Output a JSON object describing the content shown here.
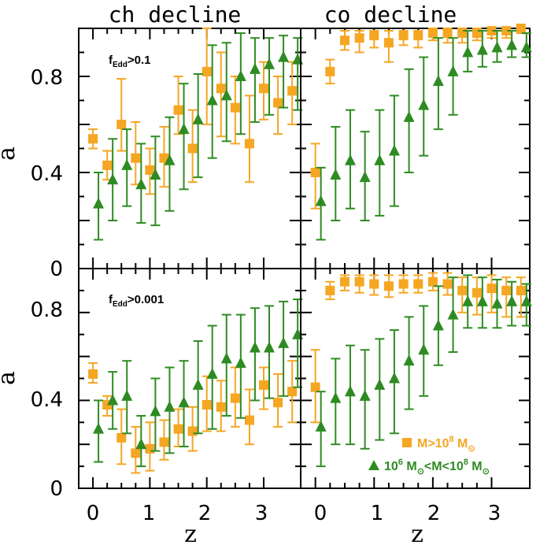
{
  "figure": {
    "panel_titles": [
      "ch decline",
      "co decline"
    ],
    "row_annotations": [
      {
        "main": "f",
        "sub": "Edd",
        "rest": ">0.1"
      },
      {
        "main": "f",
        "sub": "Edd",
        "rest": ">0.001"
      }
    ],
    "x_label": "z",
    "y_label": "a",
    "x_tick_labels": [
      "0",
      "1",
      "2",
      "3"
    ],
    "y_tick_labels": [
      "0",
      "0.4",
      "0.8"
    ],
    "legend": [
      {
        "name": "orange",
        "text": "M>10",
        "sup": "8",
        "rest": " M",
        "sub": "⊙"
      },
      {
        "name": "green",
        "text": "10",
        "sup": "6",
        "mid": " M",
        "sub1": "⊙",
        "mid2": "<M<10",
        "sup2": "8",
        "rest": " M",
        "sub2": "⊙"
      }
    ],
    "colors": {
      "orange": "#f5a623",
      "green": "#2e8b22"
    }
  },
  "chart_data": [
    {
      "type": "scatter",
      "panel": "top-left",
      "title": "ch decline",
      "annotation": "fEdd>0.1",
      "xlabel": "",
      "ylabel": "a",
      "xlim": [
        -0.25,
        3.65
      ],
      "ylim": [
        0,
        1.0
      ],
      "series": [
        {
          "name": "M>10^8 Msun",
          "color": "orange",
          "marker": "square",
          "x": [
            0.0,
            0.25,
            0.5,
            0.75,
            1.0,
            1.25,
            1.5,
            1.75,
            2.0,
            2.25,
            2.5,
            2.75,
            3.0,
            3.25,
            3.5
          ],
          "y": [
            0.54,
            0.43,
            0.6,
            0.46,
            0.41,
            0.46,
            0.66,
            0.5,
            0.82,
            0.75,
            0.67,
            0.52,
            0.75,
            0.69,
            0.74
          ],
          "lo": [
            0.5,
            0.37,
            0.49,
            0.35,
            0.31,
            0.34,
            0.56,
            0.36,
            0.6,
            0.55,
            0.52,
            0.36,
            0.62,
            0.56,
            0.6
          ],
          "hi": [
            0.58,
            0.49,
            0.79,
            0.61,
            0.5,
            0.59,
            0.8,
            0.66,
            1.0,
            0.9,
            0.8,
            0.72,
            0.86,
            0.8,
            0.86
          ]
        },
        {
          "name": "10^6 Msun<M<10^8 Msun",
          "color": "green",
          "marker": "triangle",
          "x": [
            0.0,
            0.25,
            0.5,
            0.75,
            1.0,
            1.25,
            1.5,
            1.75,
            2.0,
            2.25,
            2.5,
            2.75,
            3.0,
            3.25,
            3.5
          ],
          "y": [
            0.27,
            0.37,
            0.43,
            0.35,
            0.39,
            0.45,
            0.58,
            0.62,
            0.7,
            0.72,
            0.8,
            0.83,
            0.85,
            0.88,
            0.87
          ],
          "lo": [
            0.12,
            0.2,
            0.26,
            0.19,
            0.18,
            0.24,
            0.33,
            0.38,
            0.46,
            0.53,
            0.56,
            0.61,
            0.64,
            0.67,
            0.66
          ],
          "hi": [
            0.4,
            0.54,
            0.58,
            0.52,
            0.55,
            0.63,
            0.77,
            0.81,
            0.93,
            0.94,
            0.98,
            0.96,
            0.96,
            0.97,
            0.96
          ]
        }
      ]
    },
    {
      "type": "scatter",
      "panel": "top-right",
      "title": "co decline",
      "annotation": "",
      "xlabel": "",
      "ylabel": "",
      "xlim": [
        -0.25,
        3.65
      ],
      "ylim": [
        0,
        1.0
      ],
      "series": [
        {
          "name": "M>10^8 Msun",
          "color": "orange",
          "marker": "square",
          "x": [
            0.0,
            0.25,
            0.5,
            0.75,
            1.0,
            1.25,
            1.5,
            1.75,
            2.0,
            2.25,
            2.5,
            2.75,
            3.0,
            3.25,
            3.5
          ],
          "y": [
            0.4,
            0.82,
            0.95,
            0.96,
            0.97,
            0.94,
            0.97,
            0.97,
            0.98,
            0.98,
            0.98,
            0.98,
            0.99,
            0.99,
            1.0
          ],
          "lo": [
            0.25,
            0.77,
            0.91,
            0.9,
            0.92,
            0.86,
            0.93,
            0.92,
            0.95,
            0.94,
            0.94,
            0.95,
            0.96,
            0.96,
            0.98
          ],
          "hi": [
            0.52,
            0.87,
            0.99,
            0.99,
            0.99,
            0.99,
            0.99,
            0.99,
            1.0,
            1.0,
            1.0,
            1.0,
            1.0,
            1.0,
            1.0
          ]
        },
        {
          "name": "10^6 Msun<M<10^8 Msun",
          "color": "green",
          "marker": "triangle",
          "x": [
            0.0,
            0.25,
            0.5,
            0.75,
            1.0,
            1.25,
            1.5,
            1.75,
            2.0,
            2.25,
            2.5,
            2.75,
            3.0,
            3.25,
            3.5
          ],
          "y": [
            0.28,
            0.39,
            0.45,
            0.38,
            0.45,
            0.49,
            0.63,
            0.68,
            0.78,
            0.82,
            0.9,
            0.91,
            0.92,
            0.93,
            0.92
          ],
          "lo": [
            0.12,
            0.2,
            0.25,
            0.2,
            0.22,
            0.26,
            0.4,
            0.47,
            0.58,
            0.64,
            0.82,
            0.84,
            0.86,
            0.88,
            0.88
          ],
          "hi": [
            0.42,
            0.59,
            0.66,
            0.57,
            0.66,
            0.72,
            0.83,
            0.88,
            0.96,
            0.96,
            0.99,
            0.99,
            0.99,
            0.99,
            0.98
          ]
        }
      ]
    },
    {
      "type": "scatter",
      "panel": "bottom-left",
      "title": "",
      "annotation": "fEdd>0.001",
      "xlabel": "z",
      "ylabel": "a",
      "xlim": [
        -0.25,
        3.65
      ],
      "ylim": [
        0,
        1.0
      ],
      "series": [
        {
          "name": "M>10^8 Msun",
          "color": "orange",
          "marker": "square",
          "x": [
            0.0,
            0.25,
            0.5,
            0.75,
            1.0,
            1.25,
            1.5,
            1.75,
            2.0,
            2.25,
            2.5,
            2.75,
            3.0,
            3.25,
            3.5
          ],
          "y": [
            0.52,
            0.38,
            0.23,
            0.16,
            0.18,
            0.21,
            0.27,
            0.26,
            0.38,
            0.37,
            0.41,
            0.31,
            0.47,
            0.39,
            0.44
          ],
          "lo": [
            0.48,
            0.33,
            0.11,
            0.07,
            0.08,
            0.13,
            0.19,
            0.17,
            0.26,
            0.26,
            0.28,
            0.2,
            0.36,
            0.28,
            0.3
          ],
          "hi": [
            0.57,
            0.42,
            0.36,
            0.28,
            0.3,
            0.31,
            0.36,
            0.37,
            0.51,
            0.49,
            0.55,
            0.45,
            0.55,
            0.52,
            0.58
          ]
        },
        {
          "name": "10^6 Msun<M<10^8 Msun",
          "color": "green",
          "marker": "triangle",
          "x": [
            0.0,
            0.25,
            0.5,
            0.75,
            1.0,
            1.25,
            1.5,
            1.75,
            2.0,
            2.25,
            2.5,
            2.75,
            3.0,
            3.25,
            3.5
          ],
          "y": [
            0.27,
            0.4,
            0.42,
            0.2,
            0.35,
            0.37,
            0.39,
            0.47,
            0.52,
            0.59,
            0.57,
            0.64,
            0.64,
            0.66,
            0.7
          ],
          "lo": [
            0.12,
            0.27,
            0.25,
            0.1,
            0.17,
            0.16,
            0.19,
            0.25,
            0.27,
            0.33,
            0.32,
            0.4,
            0.41,
            0.42,
            0.46
          ],
          "hi": [
            0.4,
            0.53,
            0.58,
            0.33,
            0.5,
            0.55,
            0.58,
            0.67,
            0.74,
            0.79,
            0.79,
            0.82,
            0.83,
            0.85,
            0.86
          ]
        }
      ]
    },
    {
      "type": "scatter",
      "panel": "bottom-right",
      "title": "",
      "annotation": "",
      "xlabel": "z",
      "ylabel": "",
      "xlim": [
        -0.25,
        3.65
      ],
      "ylim": [
        0,
        1.0
      ],
      "series": [
        {
          "name": "M>10^8 Msun",
          "color": "orange",
          "marker": "square",
          "x": [
            0.0,
            0.25,
            0.5,
            0.75,
            1.0,
            1.25,
            1.5,
            1.75,
            2.0,
            2.25,
            2.5,
            2.75,
            3.0,
            3.25,
            3.5
          ],
          "y": [
            0.46,
            0.9,
            0.94,
            0.94,
            0.93,
            0.92,
            0.93,
            0.93,
            0.94,
            0.93,
            0.9,
            0.89,
            0.91,
            0.9,
            0.9
          ],
          "lo": [
            0.3,
            0.86,
            0.9,
            0.89,
            0.88,
            0.87,
            0.89,
            0.89,
            0.9,
            0.88,
            0.8,
            0.79,
            0.8,
            0.78,
            0.78
          ],
          "hi": [
            0.63,
            0.94,
            0.97,
            0.97,
            0.97,
            0.97,
            0.97,
            0.97,
            0.98,
            0.98,
            0.96,
            0.96,
            0.97,
            0.96,
            0.96
          ]
        },
        {
          "name": "10^6 Msun<M<10^8 Msun",
          "color": "green",
          "marker": "triangle",
          "x": [
            0.0,
            0.25,
            0.5,
            0.75,
            1.0,
            1.25,
            1.5,
            1.75,
            2.0,
            2.25,
            2.5,
            2.75,
            3.0,
            3.25,
            3.5
          ],
          "y": [
            0.28,
            0.41,
            0.44,
            0.42,
            0.47,
            0.5,
            0.58,
            0.63,
            0.74,
            0.79,
            0.85,
            0.85,
            0.84,
            0.85,
            0.85
          ],
          "lo": [
            0.1,
            0.2,
            0.2,
            0.18,
            0.22,
            0.25,
            0.36,
            0.42,
            0.56,
            0.62,
            0.73,
            0.73,
            0.73,
            0.74,
            0.74
          ],
          "hi": [
            0.44,
            0.59,
            0.65,
            0.63,
            0.68,
            0.72,
            0.78,
            0.83,
            0.92,
            0.96,
            0.97,
            0.96,
            0.95,
            0.94,
            0.93
          ]
        }
      ]
    }
  ]
}
